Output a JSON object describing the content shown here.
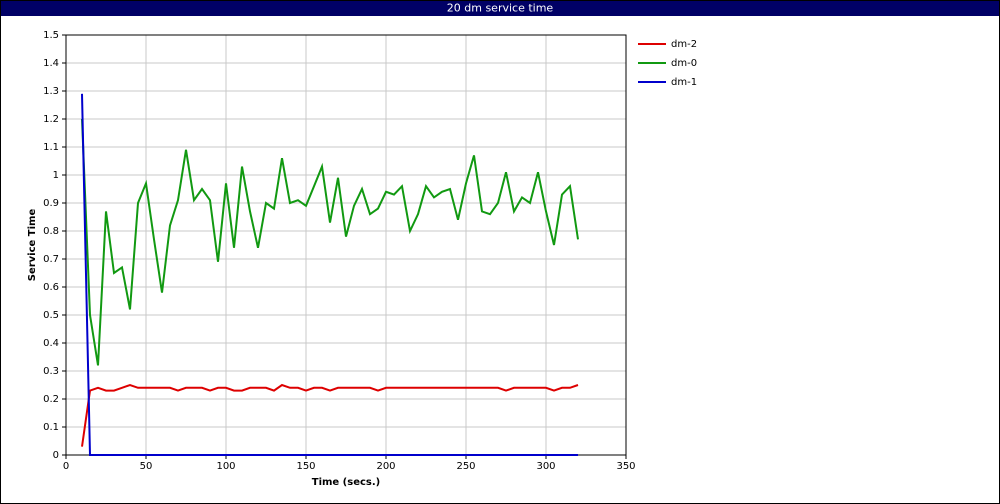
{
  "chart_data": {
    "type": "line",
    "title": "20 dm service time",
    "x_label": "Time (secs.)",
    "y_label": "Service Time",
    "x": [
      10,
      15,
      20,
      25,
      30,
      35,
      40,
      45,
      50,
      55,
      60,
      65,
      70,
      75,
      80,
      85,
      90,
      95,
      100,
      105,
      110,
      115,
      120,
      125,
      130,
      135,
      140,
      145,
      150,
      155,
      160,
      165,
      170,
      175,
      180,
      185,
      190,
      195,
      200,
      205,
      210,
      215,
      220,
      225,
      230,
      235,
      240,
      245,
      250,
      255,
      260,
      265,
      270,
      275,
      280,
      285,
      290,
      295,
      300,
      305,
      310,
      315,
      320
    ],
    "series": [
      {
        "name": "dm-2",
        "color": "#dd0000",
        "values": [
          0.03,
          0.23,
          0.24,
          0.23,
          0.23,
          0.24,
          0.25,
          0.24,
          0.24,
          0.24,
          0.24,
          0.24,
          0.23,
          0.24,
          0.24,
          0.24,
          0.23,
          0.24,
          0.24,
          0.23,
          0.23,
          0.24,
          0.24,
          0.24,
          0.23,
          0.25,
          0.24,
          0.24,
          0.23,
          0.24,
          0.24,
          0.23,
          0.24,
          0.24,
          0.24,
          0.24,
          0.24,
          0.23,
          0.24,
          0.24,
          0.24,
          0.24,
          0.24,
          0.24,
          0.24,
          0.24,
          0.24,
          0.24,
          0.24,
          0.24,
          0.24,
          0.24,
          0.24,
          0.23,
          0.24,
          0.24,
          0.24,
          0.24,
          0.24,
          0.23,
          0.24,
          0.24,
          0.25
        ]
      },
      {
        "name": "dm-0",
        "color": "#119911",
        "values": [
          1.2,
          0.5,
          0.32,
          0.87,
          0.65,
          0.67,
          0.52,
          0.9,
          0.97,
          0.77,
          0.58,
          0.82,
          0.91,
          1.09,
          0.91,
          0.95,
          0.91,
          0.69,
          0.97,
          0.74,
          1.03,
          0.87,
          0.74,
          0.9,
          0.88,
          1.06,
          0.9,
          0.91,
          0.89,
          0.96,
          1.03,
          0.83,
          0.99,
          0.78,
          0.89,
          0.95,
          0.86,
          0.88,
          0.94,
          0.93,
          0.96,
          0.8,
          0.86,
          0.96,
          0.92,
          0.94,
          0.95,
          0.84,
          0.97,
          1.07,
          0.87,
          0.86,
          0.9,
          1.01,
          0.87,
          0.92,
          0.9,
          1.01,
          0.87,
          0.75,
          0.93,
          0.96,
          0.77
        ]
      },
      {
        "name": "dm-1",
        "color": "#0000cc",
        "values": [
          1.29,
          0,
          0,
          0,
          0,
          0,
          0,
          0,
          0,
          0,
          0,
          0,
          0,
          0,
          0,
          0,
          0,
          0,
          0,
          0,
          0,
          0,
          0,
          0,
          0,
          0,
          0,
          0,
          0,
          0,
          0,
          0,
          0,
          0,
          0,
          0,
          0,
          0,
          0,
          0,
          0,
          0,
          0,
          0,
          0,
          0,
          0,
          0,
          0,
          0,
          0,
          0,
          0,
          0,
          0,
          0,
          0,
          0,
          0,
          0,
          0,
          0,
          0
        ]
      }
    ],
    "xlim": [
      0,
      350
    ],
    "xticks": [
      0,
      50,
      100,
      150,
      200,
      250,
      300,
      350
    ],
    "ylim": [
      0,
      1.5
    ],
    "yticks": [
      0,
      0.1,
      0.2,
      0.3,
      0.4,
      0.5,
      0.6,
      0.7,
      0.8,
      0.9,
      1,
      1.1,
      1.2,
      1.3,
      1.4,
      1.5
    ],
    "grid": true,
    "legend": "right"
  }
}
